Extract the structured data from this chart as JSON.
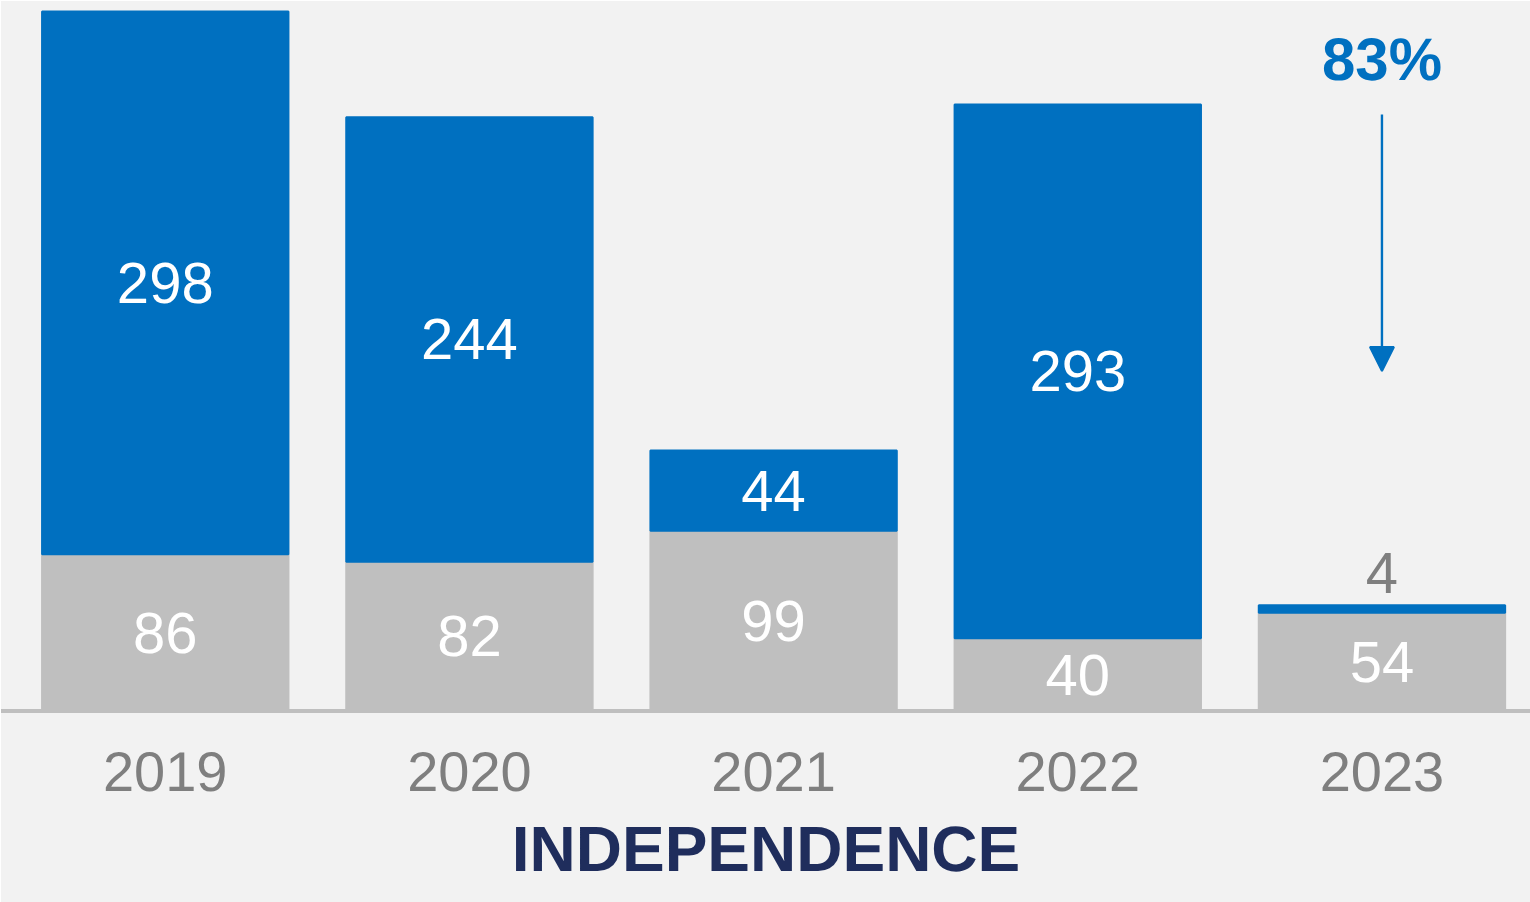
{
  "chart_data": {
    "type": "bar",
    "stacked": true,
    "data_labels": true,
    "xlabel": "INDEPENDENCE",
    "categories": [
      "2019",
      "2020",
      "2021",
      "2022",
      "2023"
    ],
    "series": [
      {
        "color": "#bfbfbf",
        "values": [
          86,
          82,
          99,
          40,
          54
        ]
      },
      {
        "color": "#0070c0",
        "values": [
          298,
          244,
          44,
          293,
          4
        ]
      }
    ],
    "annotations": [
      "83%"
    ]
  }
}
